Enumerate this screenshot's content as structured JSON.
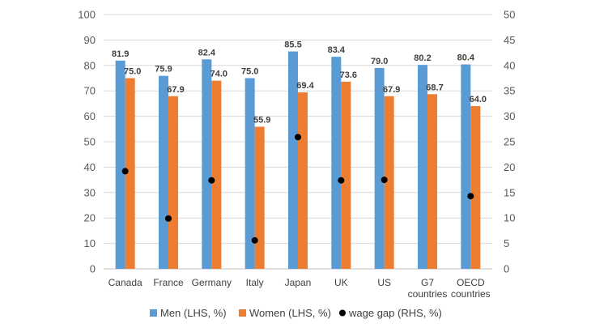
{
  "chart_data": {
    "type": "bar",
    "title": "",
    "categories": [
      "Canada",
      "France",
      "Germany",
      "Italy",
      "Japan",
      "UK",
      "US",
      "G7 countries",
      "OECD countries"
    ],
    "category_lines": [
      [
        "Canada"
      ],
      [
        "France"
      ],
      [
        "Germany"
      ],
      [
        "Italy"
      ],
      [
        "Japan"
      ],
      [
        "UK"
      ],
      [
        "US"
      ],
      [
        "G7",
        "countries"
      ],
      [
        "OECD",
        "countries"
      ]
    ],
    "series": [
      {
        "name": "Men (LHS, %)",
        "axis": "left",
        "kind": "bar",
        "color": "#5B9BD5",
        "values": [
          81.9,
          75.9,
          82.4,
          75.0,
          85.5,
          83.4,
          79.0,
          80.2,
          80.4
        ],
        "labels": [
          "81.9",
          "75.9",
          "82.4",
          "75.0",
          "85.5",
          "83.4",
          "79.0",
          "80.2",
          "80.4"
        ]
      },
      {
        "name": "Women (LHS, %)",
        "axis": "left",
        "kind": "bar",
        "color": "#ED7D31",
        "values": [
          75.0,
          67.9,
          74.0,
          55.9,
          69.4,
          73.6,
          67.9,
          68.7,
          64.0
        ],
        "labels": [
          "75.0",
          "67.9",
          "74.0",
          "55.9",
          "69.4",
          "73.6",
          "67.9",
          "68.7",
          "64.0"
        ]
      },
      {
        "name": "wage gap (RHS, %)",
        "axis": "right",
        "kind": "scatter",
        "color": "#000000",
        "values": [
          19.2,
          9.9,
          17.4,
          5.6,
          25.9,
          17.4,
          17.5,
          null,
          14.3
        ]
      }
    ],
    "y_left": {
      "min": 0,
      "max": 100,
      "step": 10,
      "ticks": [
        "0",
        "10",
        "20",
        "30",
        "40",
        "50",
        "60",
        "70",
        "80",
        "90",
        "100"
      ]
    },
    "y_right": {
      "min": 0,
      "max": 50,
      "step": 5,
      "ticks": [
        "0",
        "5",
        "10",
        "15",
        "20",
        "25",
        "30",
        "35",
        "40",
        "45",
        "50"
      ]
    },
    "grid": true,
    "legend_position": "bottom"
  }
}
